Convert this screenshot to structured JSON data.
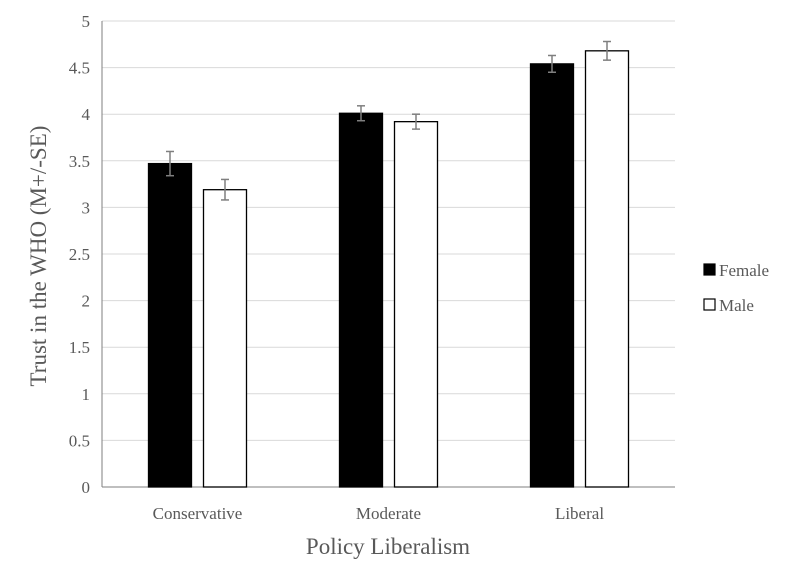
{
  "chart_data": {
    "type": "bar",
    "title": "",
    "xlabel": "Policy Liberalism",
    "ylabel": "Trust in the WHO (M+/-SE)",
    "ylim": [
      0,
      5
    ],
    "yticks": [
      "0",
      "0.5",
      "1",
      "1.5",
      "2",
      "2.5",
      "3",
      "3.5",
      "4",
      "4.5",
      "5"
    ],
    "grid": true,
    "legend_position": "right",
    "categories": [
      "Conservative",
      "Moderate",
      "Liberal"
    ],
    "series": [
      {
        "name": "Female",
        "color": "#000000",
        "values": [
          3.47,
          4.01,
          4.54
        ],
        "se": [
          0.13,
          0.08,
          0.09
        ]
      },
      {
        "name": "Male",
        "color": "#ffffff",
        "values": [
          3.19,
          3.92,
          4.68
        ],
        "se": [
          0.11,
          0.08,
          0.1
        ]
      }
    ]
  }
}
